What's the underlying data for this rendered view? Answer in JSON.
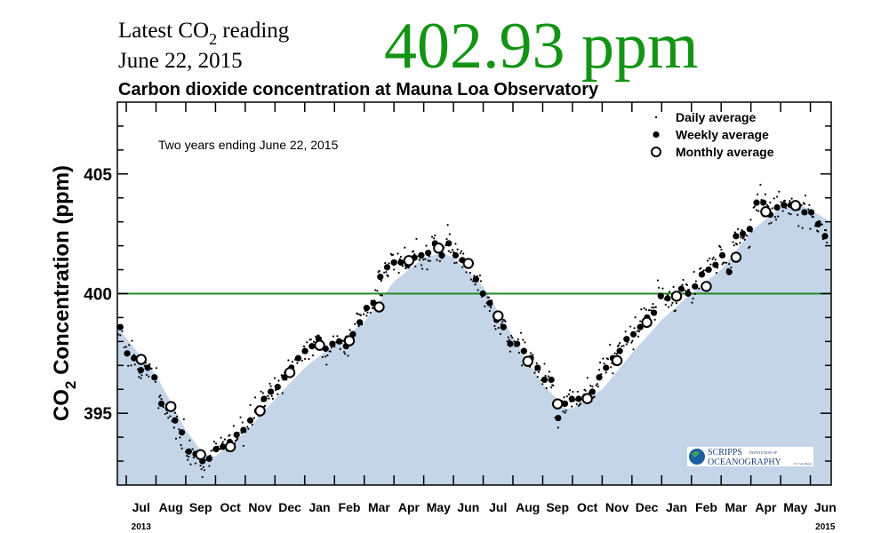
{
  "header": {
    "latest_label": "Latest CO",
    "latest_sub": "2",
    "latest_suffix": " reading",
    "date": "June 22, 2015",
    "reading": "402.93 ppm",
    "reading_color": "#149414"
  },
  "chart_data": {
    "type": "scatter",
    "title": "Carbon dioxide concentration at Mauna Loa Observatory",
    "annotation": "Two years ending June 22, 2015",
    "ylabel_main": "CO",
    "ylabel_sub": "2",
    "ylabel_rest": " Concentration (ppm)",
    "ylim": [
      392,
      408
    ],
    "xlim_months_from_jul_2013": [
      -0.3,
      23.7
    ],
    "yticks": [
      395,
      400,
      405
    ],
    "reference_line": {
      "value": 400,
      "color": "#228b22"
    },
    "fill_color": "#c4d5e8",
    "month_labels": [
      "Jul",
      "Aug",
      "Sep",
      "Oct",
      "Nov",
      "Dec",
      "Jan",
      "Feb",
      "Mar",
      "Apr",
      "May",
      "Jun",
      "Jul",
      "Aug",
      "Sep",
      "Oct",
      "Nov",
      "Dec",
      "Jan",
      "Feb",
      "Mar",
      "Apr",
      "May",
      "Jun"
    ],
    "year_labels": [
      {
        "label": "2013",
        "month_index": 0
      },
      {
        "label": "2015",
        "month_index": 23
      }
    ],
    "legend": {
      "position": "top-right",
      "items": [
        {
          "label": "Daily average",
          "marker": "small-dot"
        },
        {
          "label": "Weekly average",
          "marker": "filled-circle"
        },
        {
          "label": "Monthly average",
          "marker": "open-circle"
        }
      ]
    },
    "smooth_curve": {
      "t": [
        -0.3,
        1,
        2,
        2.6,
        3,
        4,
        5,
        6,
        7,
        8,
        9,
        10,
        10.6,
        11,
        12,
        13,
        14,
        14.8,
        15,
        16,
        17,
        18,
        19,
        20,
        21,
        22,
        22.5,
        23,
        23.7
      ],
      "values": [
        398.6,
        396.6,
        394.3,
        393.3,
        393.2,
        394.2,
        395.6,
        396.9,
        397.9,
        398.8,
        400.5,
        401.5,
        401.7,
        401.5,
        400.3,
        398.2,
        396.2,
        395.2,
        395.2,
        396.0,
        397.5,
        398.9,
        400.0,
        401.0,
        402.6,
        403.6,
        403.8,
        403.5,
        403.0
      ]
    },
    "weekly": {
      "start_t": -0.2,
      "step_t": 0.23,
      "values": [
        398.6,
        397.5,
        397.3,
        396.8,
        396.9,
        396.5,
        395.4,
        395.2,
        394.7,
        394.2,
        393.4,
        393.3,
        393.0,
        393.1,
        393.5,
        393.6,
        393.8,
        394.1,
        394.3,
        394.7,
        395.1,
        395.6,
        395.9,
        396.1,
        396.5,
        396.9,
        397.3,
        397.6,
        397.8,
        398.1,
        397.7,
        397.9,
        398.0,
        397.8,
        398.3,
        398.8,
        399.4,
        399.6,
        400.7,
        401.1,
        401.3,
        401.3,
        401.2,
        401.5,
        401.6,
        401.7,
        402.1,
        401.6,
        402.1,
        401.6,
        401.4,
        401.2,
        400.6,
        400.0,
        399.6,
        398.9,
        398.6,
        397.9,
        397.9,
        397.6,
        397.3,
        396.9,
        396.4,
        396.4,
        394.8,
        395.4,
        395.6,
        395.6,
        395.7,
        395.9,
        396.5,
        396.9,
        397.3,
        397.6,
        398.1,
        398.3,
        398.6,
        399.0,
        399.2,
        399.9,
        399.8,
        399.9,
        400.2,
        400.0,
        400.3,
        400.8,
        401.0,
        401.2,
        401.6,
        400.9,
        402.4,
        402.5,
        402.7,
        403.8,
        403.8,
        403.3,
        403.6,
        403.7,
        403.7,
        403.6,
        403.4,
        403.4,
        402.9,
        402.4
      ]
    },
    "monthly": {
      "t": [
        0.5,
        1.5,
        2.5,
        3.5,
        4.5,
        5.5,
        6.5,
        7.5,
        8.5,
        9.5,
        10.5,
        11.5,
        12.5,
        13.5,
        14.5,
        15.5,
        16.5,
        17.5,
        18.5,
        19.5,
        20.5,
        21.5,
        22.5
      ],
      "values": [
        397.25,
        395.28,
        393.27,
        393.6,
        395.1,
        396.7,
        397.84,
        398.03,
        399.44,
        401.38,
        401.9,
        401.26,
        399.07,
        397.17,
        395.39,
        395.61,
        397.2,
        398.8,
        399.89,
        400.3,
        401.52,
        403.42,
        403.68
      ]
    }
  },
  "logo": {
    "name_top": "SCRIPPS",
    "name_small": "INSTITUTION OF",
    "name_bottom": "OCEANOGRAPHY",
    "name_tiny": "UC San Diego"
  }
}
